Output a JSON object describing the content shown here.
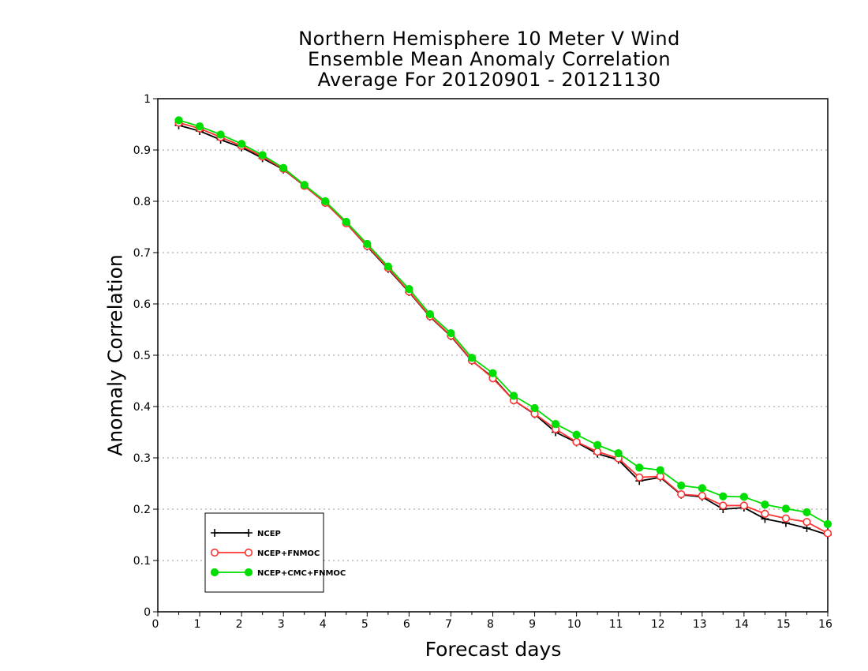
{
  "chart_data": {
    "type": "line",
    "title_lines": [
      "Northern Hemisphere 10 Meter V Wind",
      "Ensemble Mean Anomaly Correlation",
      "Average For 20120901 - 20121130"
    ],
    "xlabel": "Forecast days",
    "ylabel": "Anomaly Correlation",
    "xlim": [
      0,
      16
    ],
    "ylim": [
      0,
      1
    ],
    "xticks": [
      "0",
      "1",
      "2",
      "3",
      "4",
      "5",
      "6",
      "7",
      "8",
      "9",
      "10",
      "11",
      "12",
      "13",
      "14",
      "15",
      "16"
    ],
    "yticks": [
      "0",
      "0.1",
      "0.2",
      "0.3",
      "0.4",
      "0.5",
      "0.6",
      "0.7",
      "0.8",
      "0.9",
      "1"
    ],
    "grid": "horizontal-dotted",
    "legend_position": "bottom-left",
    "x": [
      0.5,
      1,
      1.5,
      2,
      2.5,
      3,
      3.5,
      4,
      4.5,
      5,
      5.5,
      6,
      6.5,
      7,
      7.5,
      8,
      8.5,
      9,
      9.5,
      10,
      10.5,
      11,
      11.5,
      12,
      12.5,
      13,
      13.5,
      14,
      14.5,
      15,
      15.5,
      16
    ],
    "series": [
      {
        "name": "NCEP",
        "color": "#000000",
        "marker": "plus",
        "values": [
          0.948,
          0.937,
          0.92,
          0.905,
          0.884,
          0.862,
          0.83,
          0.797,
          0.757,
          0.712,
          0.668,
          0.623,
          0.575,
          0.537,
          0.489,
          0.457,
          0.412,
          0.385,
          0.35,
          0.33,
          0.308,
          0.296,
          0.255,
          0.262,
          0.228,
          0.224,
          0.2,
          0.203,
          0.181,
          0.173,
          0.163,
          0.15
        ]
      },
      {
        "name": "NCEP+FNMOC",
        "color": "#ff3333",
        "marker": "open-circle",
        "values": [
          0.953,
          0.942,
          0.925,
          0.908,
          0.887,
          0.863,
          0.83,
          0.797,
          0.757,
          0.713,
          0.67,
          0.624,
          0.576,
          0.538,
          0.49,
          0.455,
          0.412,
          0.386,
          0.356,
          0.331,
          0.312,
          0.299,
          0.262,
          0.264,
          0.229,
          0.226,
          0.207,
          0.207,
          0.191,
          0.182,
          0.175,
          0.153
        ]
      },
      {
        "name": "NCEP+CMC+FNMOC",
        "color": "#00dd00",
        "marker": "filled-circle",
        "values": [
          0.958,
          0.946,
          0.93,
          0.912,
          0.89,
          0.865,
          0.832,
          0.8,
          0.76,
          0.717,
          0.673,
          0.629,
          0.58,
          0.543,
          0.495,
          0.465,
          0.421,
          0.397,
          0.366,
          0.345,
          0.325,
          0.309,
          0.281,
          0.276,
          0.246,
          0.241,
          0.225,
          0.224,
          0.209,
          0.201,
          0.194,
          0.171
        ]
      }
    ]
  }
}
